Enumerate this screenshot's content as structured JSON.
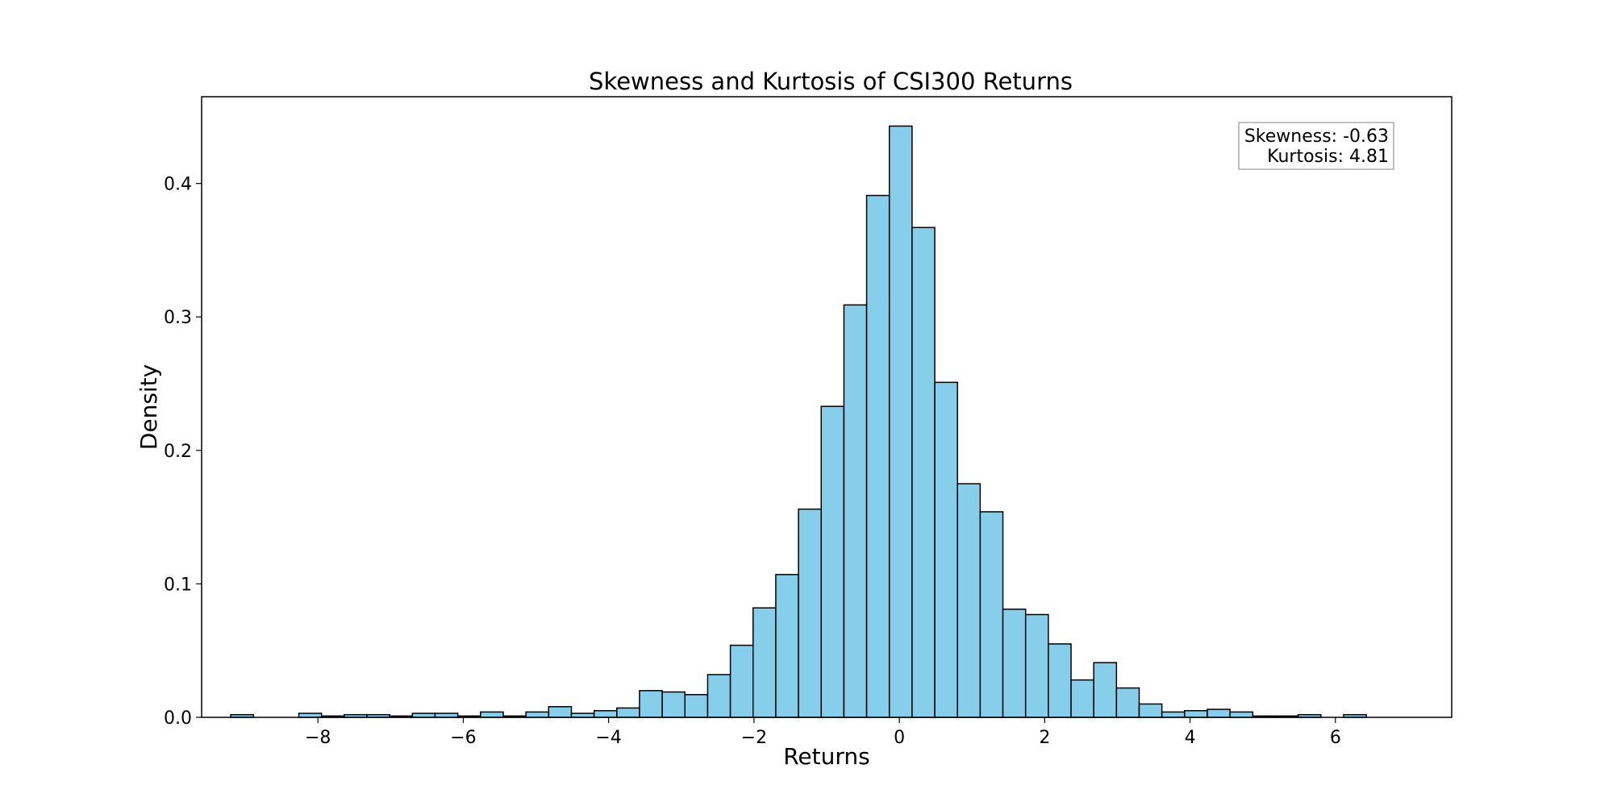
{
  "chart_data": {
    "type": "bar",
    "title": "Skewness and Kurtosis of CSI300 Returns",
    "xlabel": "Returns",
    "ylabel": "Density",
    "xlim": [
      -9.6,
      7.6
    ],
    "ylim": [
      0,
      0.465
    ],
    "xticks": [
      -8,
      -6,
      -4,
      -2,
      0,
      2,
      4,
      6
    ],
    "xtick_labels": [
      "−8",
      "−6",
      "−4",
      "−2",
      "0",
      "2",
      "4",
      "6"
    ],
    "yticks": [
      0.0,
      0.1,
      0.2,
      0.3,
      0.4
    ],
    "ytick_labels": [
      "0.0",
      "0.1",
      "0.2",
      "0.3",
      "0.4"
    ],
    "grid": false,
    "bar_color": "#87ceeb",
    "edge_color": "#000000",
    "bin_start": -9.2,
    "bin_width": 0.3125,
    "values": [
      0.002,
      0.0,
      0.0,
      0.003,
      0.001,
      0.002,
      0.002,
      0.001,
      0.003,
      0.003,
      0.001,
      0.004,
      0.001,
      0.004,
      0.008,
      0.003,
      0.005,
      0.007,
      0.02,
      0.019,
      0.017,
      0.032,
      0.054,
      0.082,
      0.107,
      0.156,
      0.233,
      0.309,
      0.391,
      0.443,
      0.367,
      0.251,
      0.175,
      0.154,
      0.081,
      0.077,
      0.055,
      0.028,
      0.041,
      0.022,
      0.01,
      0.004,
      0.005,
      0.006,
      0.004,
      0.001,
      0.001,
      0.002,
      0.0,
      0.002
    ],
    "annotation": {
      "lines": [
        "Skewness: -0.63",
        "Kurtosis: 4.81"
      ],
      "placement": "top-right"
    }
  }
}
